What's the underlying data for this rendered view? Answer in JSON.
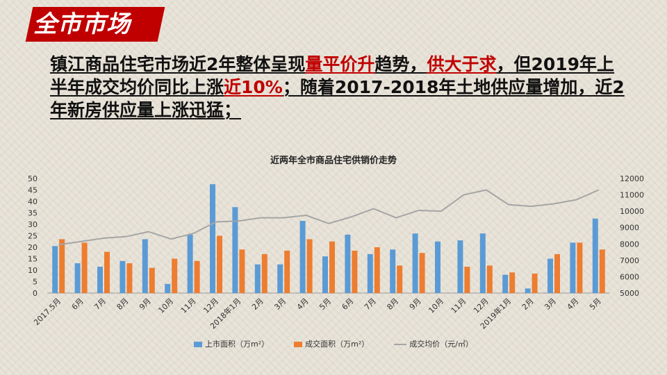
{
  "page": {
    "title": "全市市场",
    "headline": [
      {
        "text": "镇江商品住宅市场近2年整体呈现",
        "red": false
      },
      {
        "text": "量平价升",
        "red": true
      },
      {
        "text": "趋势，",
        "red": false
      },
      {
        "text": "供大于求",
        "red": true
      },
      {
        "text": "，但2019年上半年成交均价同比上涨",
        "red": false
      },
      {
        "text": "近10%",
        "red": true
      },
      {
        "text": "；随着2017-2018年土地供应量增加，近2年新房供应量上涨迅猛；",
        "red": false
      }
    ]
  },
  "colors": {
    "title_bg": "#c00000",
    "supply": "#5b9bd5",
    "sales": "#ed7d31",
    "price": "#a5a5a5",
    "accent_text": "#c00000"
  },
  "chart_data": {
    "type": "bar",
    "title": "近两年全市商品住宅供销价走势",
    "categories": [
      "2017.5月",
      "6月",
      "7月",
      "8月",
      "9月",
      "10月",
      "11月",
      "12月",
      "2018年1月",
      "2月",
      "3月",
      "4月",
      "5月",
      "6月",
      "7月",
      "8月",
      "9月",
      "10月",
      "11月",
      "12月",
      "2019年1月",
      "2月",
      "3月",
      "4月",
      "5月"
    ],
    "series": [
      {
        "name": "上市面积（万m²）",
        "kind": "bar",
        "axis": "left",
        "values": [
          20.5,
          13,
          11.5,
          14,
          23.5,
          4,
          25.5,
          47.5,
          37.5,
          12.5,
          12.5,
          31.5,
          16,
          25.5,
          17,
          19,
          26,
          22.5,
          23,
          26,
          8,
          2,
          15,
          22,
          32.5
        ]
      },
      {
        "name": "成交面积（万m²）",
        "kind": "bar",
        "axis": "left",
        "values": [
          23.5,
          22,
          18,
          13,
          11,
          15,
          14,
          25,
          19,
          17,
          18.5,
          23.5,
          22.5,
          18.5,
          20,
          12,
          17.5,
          0,
          11.5,
          12,
          9,
          8.5,
          17,
          22,
          19
        ]
      },
      {
        "name": "成交均价（元/㎡）",
        "kind": "line",
        "axis": "right",
        "values": [
          7950,
          8150,
          8350,
          8450,
          8750,
          8300,
          8650,
          9350,
          9400,
          9600,
          9600,
          9750,
          9250,
          9650,
          10150,
          9600,
          10050,
          10000,
          11000,
          11300,
          10400,
          10300,
          10450,
          10700,
          11300
        ]
      }
    ],
    "y_left": {
      "min": 0,
      "max": 50,
      "ticks": [
        "0",
        "5",
        "10",
        "15",
        "20",
        "25",
        "30",
        "35",
        "40",
        "45",
        "50"
      ]
    },
    "y_right": {
      "min": 5000,
      "max": 12000,
      "ticks": [
        "5000",
        "6000",
        "7000",
        "8000",
        "9000",
        "10000",
        "11000",
        "12000"
      ]
    },
    "grid": false,
    "legend_position": "bottom"
  }
}
